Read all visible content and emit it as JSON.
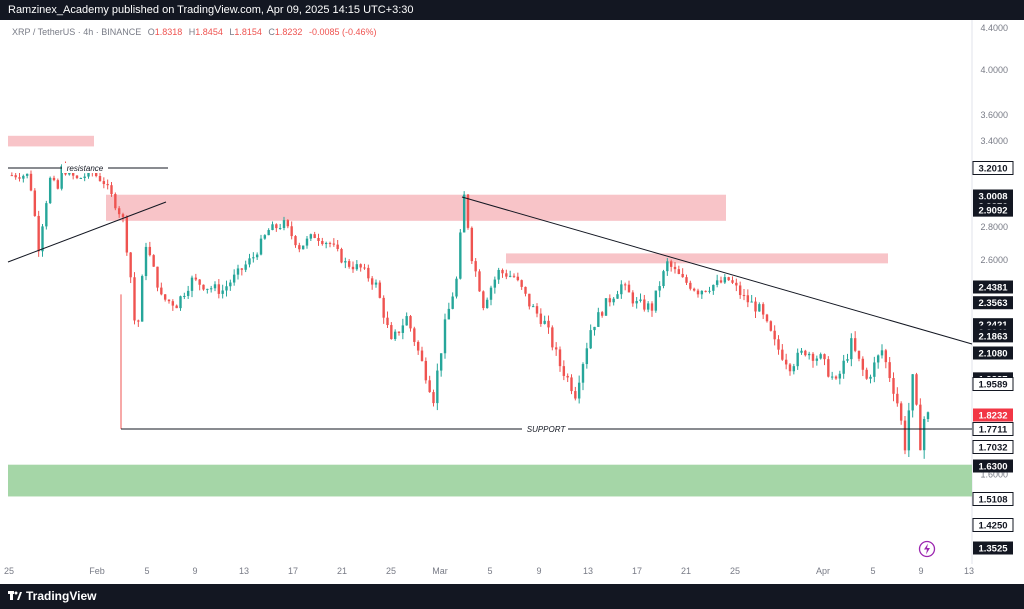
{
  "header": {
    "publisher_text": "Ramzinex_Academy published on TradingView.com, Apr 09, 2025 14:15 UTC+3:30"
  },
  "symbol_info": {
    "pair": "XRP / TetherUS · 4h · BINANCE",
    "open_label": "O",
    "open": "1.8318",
    "high_label": "H",
    "high": "1.8454",
    "low_label": "L",
    "low": "1.8154",
    "close_label": "C",
    "close": "1.8232",
    "change": "-0.0085 (-0.46%)"
  },
  "footer": {
    "brand": "TradingView"
  },
  "colors": {
    "up": "#26a69a",
    "down": "#ef5350",
    "zone_red": "#f8c4c8",
    "zone_green": "#a5d6a7",
    "dark": "#131722",
    "last_price": "#f23645"
  },
  "icons": {
    "logo": "tradingview-logo-icon",
    "indicator": "lightning-icon"
  },
  "chart_data": {
    "type": "candlestick",
    "title": "",
    "price_axis_ticks": [
      "4.4000",
      "4.0000",
      "3.6000",
      "3.4000",
      "2.8000",
      "2.6000",
      "1.6000"
    ],
    "price_labels": [
      {
        "text": "3.2010",
        "price": 3.201,
        "style": "outline"
      },
      {
        "text": "3.0008",
        "price": 3.0008,
        "style": "dark"
      },
      {
        "text": "2.9376",
        "price": 2.9376,
        "style": "dark"
      },
      {
        "text": "2.9092",
        "price": 2.9092,
        "style": "dark"
      },
      {
        "text": "2.4381",
        "price": 2.4381,
        "style": "dark"
      },
      {
        "text": "2.3563",
        "price": 2.3563,
        "style": "dark"
      },
      {
        "text": "2.2421",
        "price": 2.2421,
        "style": "dark"
      },
      {
        "text": "2.2040",
        "price": 2.204,
        "style": "dark"
      },
      {
        "text": "2.1863",
        "price": 2.1863,
        "style": "dark"
      },
      {
        "text": "2.1080",
        "price": 2.108,
        "style": "dark"
      },
      {
        "text": "1.9837",
        "price": 1.9837,
        "style": "dark"
      },
      {
        "text": "1.9589",
        "price": 1.9589,
        "style": "outline"
      },
      {
        "text": "1.8232",
        "price": 1.8232,
        "style": "red"
      },
      {
        "text": "1.7711",
        "price": 1.7711,
        "style": "outline"
      },
      {
        "text": "1.7032",
        "price": 1.7032,
        "style": "outline"
      },
      {
        "text": "1.6300",
        "price": 1.63,
        "style": "dark"
      },
      {
        "text": "1.5108",
        "price": 1.5108,
        "style": "outline"
      },
      {
        "text": "1.4250",
        "price": 1.425,
        "style": "outline"
      },
      {
        "text": "1.3525",
        "price": 1.3525,
        "style": "dark"
      }
    ],
    "time_axis_ticks": [
      "25",
      "Feb",
      "5",
      "9",
      "13",
      "17",
      "21",
      "25",
      "Mar",
      "5",
      "9",
      "13",
      "17",
      "21",
      "25",
      "Apr",
      "5",
      "9",
      "13"
    ],
    "annotations": [
      "resistance",
      "SUPPORT"
    ],
    "zones": [
      {
        "name": "red-zone-top-left",
        "color": "#f8c4c8",
        "price_from": 3.36,
        "price_to": 3.44
      },
      {
        "name": "red-zone-main",
        "color": "#f8c4c8",
        "price_from": 2.84,
        "price_to": 3.01
      },
      {
        "name": "red-zone-right",
        "color": "#f8c4c8",
        "price_from": 2.58,
        "price_to": 2.64
      },
      {
        "name": "green-zone",
        "color": "#a5d6a7",
        "price_from": 1.52,
        "price_to": 1.635
      }
    ],
    "support_price": 1.7711,
    "resistance_price": 3.21,
    "path": [
      [
        0,
        3.15
      ],
      [
        4,
        3.15
      ],
      [
        5.5,
        3.15
      ],
      [
        8,
        2.68
      ],
      [
        11,
        3.12
      ],
      [
        13,
        3.05
      ],
      [
        14,
        3.2
      ],
      [
        18,
        3.12
      ],
      [
        22,
        3.17
      ],
      [
        25,
        3.1
      ],
      [
        28,
        2.95
      ],
      [
        30,
        2.85
      ],
      [
        32,
        2.5
      ],
      [
        33.5,
        2.15
      ],
      [
        36,
        2.7
      ],
      [
        40,
        2.38
      ],
      [
        44,
        2.35
      ],
      [
        48,
        2.48
      ],
      [
        52,
        2.44
      ],
      [
        56,
        2.42
      ],
      [
        60,
        2.52
      ],
      [
        64,
        2.62
      ],
      [
        68,
        2.78
      ],
      [
        72,
        2.82
      ],
      [
        76,
        2.68
      ],
      [
        80,
        2.75
      ],
      [
        84,
        2.7
      ],
      [
        88,
        2.58
      ],
      [
        92,
        2.55
      ],
      [
        96,
        2.45
      ],
      [
        100,
        2.15
      ],
      [
        104,
        2.28
      ],
      [
        108,
        2.06
      ],
      [
        111,
        1.9
      ],
      [
        114,
        2.24
      ],
      [
        117,
        2.48
      ],
      [
        119,
        3.0
      ],
      [
        121,
        2.62
      ],
      [
        124,
        2.35
      ],
      [
        128,
        2.53
      ],
      [
        132,
        2.5
      ],
      [
        136,
        2.35
      ],
      [
        140,
        2.25
      ],
      [
        144,
        2.05
      ],
      [
        148,
        1.92
      ],
      [
        152,
        2.22
      ],
      [
        156,
        2.35
      ],
      [
        160,
        2.45
      ],
      [
        164,
        2.35
      ],
      [
        168,
        2.33
      ],
      [
        172,
        2.58
      ],
      [
        176,
        2.48
      ],
      [
        180,
        2.42
      ],
      [
        184,
        2.45
      ],
      [
        188,
        2.48
      ],
      [
        192,
        2.38
      ],
      [
        196,
        2.32
      ],
      [
        200,
        2.15
      ],
      [
        204,
        2.05
      ],
      [
        208,
        2.12
      ],
      [
        212,
        2.08
      ],
      [
        216,
        1.96
      ],
      [
        220,
        2.15
      ],
      [
        224,
        1.98
      ],
      [
        228,
        2.12
      ],
      [
        232,
        1.88
      ],
      [
        234,
        1.71
      ],
      [
        236,
        1.98
      ],
      [
        237,
        1.84
      ],
      [
        238,
        1.72
      ],
      [
        239,
        1.81
      ],
      [
        240,
        1.82
      ]
    ]
  }
}
